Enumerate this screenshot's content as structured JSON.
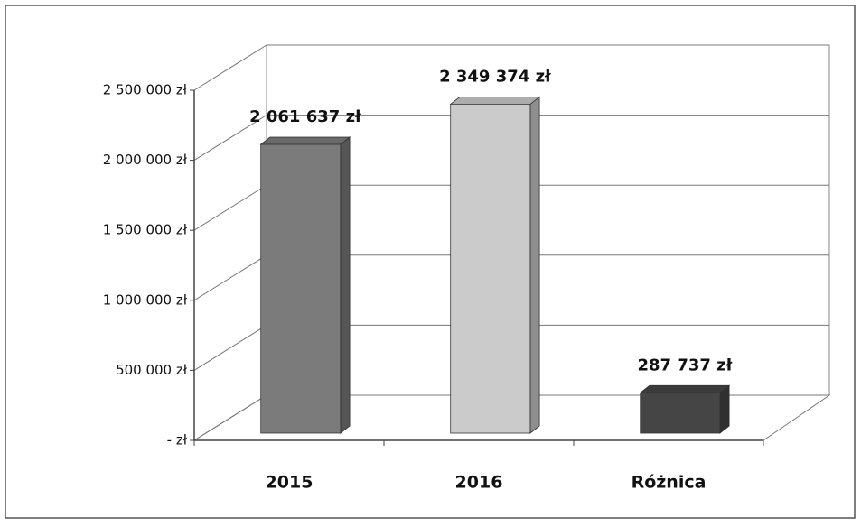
{
  "chart_data": {
    "type": "bar3d",
    "categories": [
      "2015",
      "2016",
      "Różnica"
    ],
    "values": [
      2061637,
      2349374,
      287737
    ],
    "value_labels": [
      "2 061 637 zł",
      "2 349 374 zł",
      "287 737 zł"
    ],
    "colors": [
      "#7b7b7b",
      "#cbcbcb",
      "#454545"
    ],
    "ylim": [
      0,
      2500000
    ],
    "yticks": [
      {
        "value": 0,
        "label": "- zł"
      },
      {
        "value": 500000,
        "label": "500 000 zł"
      },
      {
        "value": 1000000,
        "label": "1 000 000 zł"
      },
      {
        "value": 1500000,
        "label": "1 500 000 zł"
      },
      {
        "value": 2000000,
        "label": "2 000 000 zł"
      },
      {
        "value": 2500000,
        "label": "2 500 000 zł"
      }
    ],
    "grid": true
  }
}
